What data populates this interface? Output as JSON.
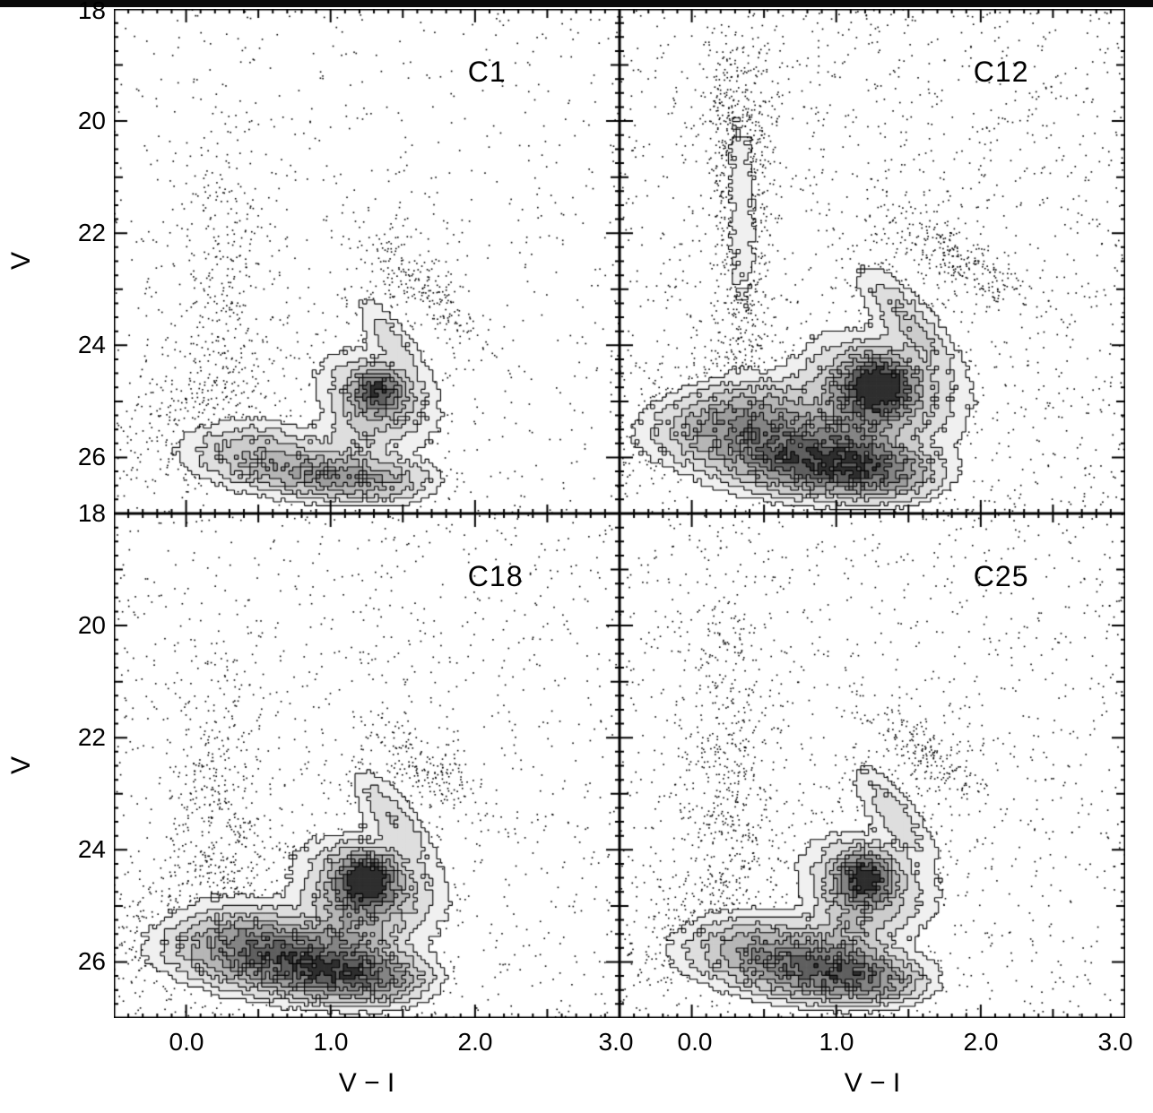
{
  "figure": {
    "xlabel": "V − I",
    "ylabel": "V",
    "xticks": [
      "0.0",
      "1.0",
      "2.0",
      "3.0"
    ],
    "yticks": [
      "18",
      "20",
      "22",
      "24",
      "26"
    ],
    "axis_color": "#000000",
    "dot_color": "#000000",
    "contour_levels": [
      0.07,
      0.15,
      0.27,
      0.42,
      0.6,
      0.8,
      1.05,
      1.35
    ],
    "contour_fills": [
      "#f0f0f0",
      "#dedede",
      "#cccccc",
      "#b6b6b6",
      "#9e9e9e",
      "#848484",
      "#5f5f5f",
      "#2e2e2e"
    ]
  },
  "chart_data": [
    {
      "type": "scatter",
      "panel": "C1",
      "xlabel": "V − I",
      "ylabel": "V",
      "xlim": [
        -0.5,
        3.0
      ],
      "ylim": [
        27.0,
        18.0
      ],
      "xticks": [
        "0.0",
        "1.0",
        "2.0",
        "3.0"
      ],
      "yticks": [
        "18",
        "20",
        "22",
        "24",
        "26"
      ],
      "seed": 11,
      "background_points": 700,
      "components": [
        {
          "name": "red_clump_core",
          "x": 1.33,
          "y": 24.82,
          "sx": 0.1,
          "sy": 0.22,
          "rot": 0,
          "a": 1.15,
          "n": 260
        },
        {
          "name": "red_clump_halo",
          "x": 1.33,
          "y": 24.95,
          "sx": 0.22,
          "sy": 0.5,
          "rot": -12,
          "a": 0.35,
          "n": 160
        },
        {
          "name": "rgb_plume",
          "x": 1.42,
          "y": 23.9,
          "sx": 0.09,
          "sy": 0.5,
          "rot": -14,
          "a": 0.2,
          "n": 160
        },
        {
          "name": "rgb_tip_dots",
          "x": 1.62,
          "y": 22.9,
          "sx": 0.14,
          "sy": 0.6,
          "rot": -18,
          "a": 0.05,
          "n": 230
        },
        {
          "name": "ms_blue",
          "x": 0.45,
          "y": 25.85,
          "sx": 0.27,
          "sy": 0.3,
          "rot": 28,
          "a": 0.32,
          "n": 160
        },
        {
          "name": "ms_mid",
          "x": 0.8,
          "y": 26.25,
          "sx": 0.3,
          "sy": 0.25,
          "rot": 10,
          "a": 0.5,
          "n": 170
        },
        {
          "name": "ms_red",
          "x": 1.15,
          "y": 26.4,
          "sx": 0.24,
          "sy": 0.22,
          "rot": 0,
          "a": 0.42,
          "n": 130
        },
        {
          "name": "ms_red_tail",
          "x": 1.45,
          "y": 26.45,
          "sx": 0.2,
          "sy": 0.24,
          "rot": 0,
          "a": 0.2,
          "n": 110
        },
        {
          "name": "sgb_bridge",
          "x": 1.2,
          "y": 25.6,
          "sx": 0.15,
          "sy": 0.4,
          "rot": 0,
          "a": 0.18,
          "n": 90
        },
        {
          "name": "blue_plume_dots",
          "x": 0.28,
          "y": 22.8,
          "sx": 0.22,
          "sy": 1.7,
          "rot": 0,
          "a": 0.015,
          "n": 320
        },
        {
          "name": "faint_blue_dots",
          "x": 0.05,
          "y": 25.1,
          "sx": 0.25,
          "sy": 0.8,
          "rot": 20,
          "a": 0.02,
          "n": 220
        }
      ]
    },
    {
      "type": "scatter",
      "panel": "C12",
      "xlabel": "V − I",
      "ylabel": "V",
      "xlim": [
        -0.5,
        3.0
      ],
      "ylim": [
        27.0,
        18.0
      ],
      "xticks": [
        "0.0",
        "1.0",
        "2.0",
        "3.0"
      ],
      "yticks": [
        "18",
        "20",
        "22",
        "24",
        "26"
      ],
      "seed": 23,
      "background_points": 1400,
      "components": [
        {
          "name": "red_clump_core",
          "x": 1.3,
          "y": 24.7,
          "sx": 0.13,
          "sy": 0.28,
          "rot": 0,
          "a": 1.55,
          "n": 300
        },
        {
          "name": "red_clump_halo",
          "x": 1.32,
          "y": 24.8,
          "sx": 0.28,
          "sy": 0.55,
          "rot": -14,
          "a": 0.5,
          "n": 180
        },
        {
          "name": "rgb_plume",
          "x": 1.5,
          "y": 23.6,
          "sx": 0.12,
          "sy": 0.6,
          "rot": -16,
          "a": 0.3,
          "n": 240
        },
        {
          "name": "rgb_tip_dots",
          "x": 1.8,
          "y": 22.4,
          "sx": 0.16,
          "sy": 0.55,
          "rot": -26,
          "a": 0.06,
          "n": 280
        },
        {
          "name": "ms_blue",
          "x": 0.35,
          "y": 25.35,
          "sx": 0.3,
          "sy": 0.4,
          "rot": 30,
          "a": 0.75,
          "n": 200
        },
        {
          "name": "ms_mid",
          "x": 0.7,
          "y": 25.95,
          "sx": 0.33,
          "sy": 0.35,
          "rot": 14,
          "a": 0.95,
          "n": 210
        },
        {
          "name": "ms_red",
          "x": 1.05,
          "y": 26.2,
          "sx": 0.3,
          "sy": 0.3,
          "rot": 4,
          "a": 0.8,
          "n": 160
        },
        {
          "name": "ms_red_tail",
          "x": 1.35,
          "y": 26.3,
          "sx": 0.22,
          "sy": 0.28,
          "rot": 0,
          "a": 0.5,
          "n": 120
        },
        {
          "name": "sgb_bridge",
          "x": 1.15,
          "y": 25.3,
          "sx": 0.2,
          "sy": 0.5,
          "rot": 0,
          "a": 0.45,
          "n": 110
        },
        {
          "name": "blue_plume",
          "x": 0.35,
          "y": 22.0,
          "sx": 0.1,
          "sy": 1.5,
          "rot": 0,
          "a": 0.09,
          "n": 520
        },
        {
          "name": "blue_plume_top_dots",
          "x": 0.3,
          "y": 20.1,
          "sx": 0.13,
          "sy": 0.8,
          "rot": 0,
          "a": 0.03,
          "n": 260
        },
        {
          "name": "faint_blue_dots",
          "x": 0.0,
          "y": 24.9,
          "sx": 0.25,
          "sy": 0.9,
          "rot": 20,
          "a": 0.02,
          "n": 240
        }
      ]
    },
    {
      "type": "scatter",
      "panel": "C18",
      "xlabel": "V − I",
      "ylabel": "V",
      "xlim": [
        -0.5,
        3.0
      ],
      "ylim": [
        27.0,
        18.0
      ],
      "xticks": [
        "0.0",
        "1.0",
        "2.0",
        "3.0"
      ],
      "yticks": [
        "18",
        "20",
        "22",
        "24",
        "26"
      ],
      "seed": 37,
      "background_points": 1050,
      "components": [
        {
          "name": "red_clump_core",
          "x": 1.25,
          "y": 24.55,
          "sx": 0.12,
          "sy": 0.28,
          "rot": 0,
          "a": 1.5,
          "n": 300
        },
        {
          "name": "red_clump_halo",
          "x": 1.27,
          "y": 24.7,
          "sx": 0.26,
          "sy": 0.52,
          "rot": -12,
          "a": 0.45,
          "n": 170
        },
        {
          "name": "rgb_plume",
          "x": 1.43,
          "y": 23.45,
          "sx": 0.11,
          "sy": 0.55,
          "rot": -14,
          "a": 0.24,
          "n": 220
        },
        {
          "name": "rgb_tip_dots",
          "x": 1.62,
          "y": 22.5,
          "sx": 0.13,
          "sy": 0.45,
          "rot": -20,
          "a": 0.05,
          "n": 180
        },
        {
          "name": "ms_blue",
          "x": 0.4,
          "y": 25.6,
          "sx": 0.3,
          "sy": 0.35,
          "rot": 30,
          "a": 0.6,
          "n": 180
        },
        {
          "name": "ms_mid",
          "x": 0.75,
          "y": 26.0,
          "sx": 0.35,
          "sy": 0.32,
          "rot": 10,
          "a": 1.0,
          "n": 230
        },
        {
          "name": "ms_red",
          "x": 1.1,
          "y": 26.25,
          "sx": 0.28,
          "sy": 0.28,
          "rot": 0,
          "a": 0.7,
          "n": 150
        },
        {
          "name": "ms_red_tail",
          "x": 1.38,
          "y": 26.35,
          "sx": 0.2,
          "sy": 0.25,
          "rot": 0,
          "a": 0.3,
          "n": 100
        },
        {
          "name": "sgb_bridge",
          "x": 1.15,
          "y": 25.35,
          "sx": 0.18,
          "sy": 0.5,
          "rot": 0,
          "a": 0.35,
          "n": 100
        },
        {
          "name": "blue_plume_dots",
          "x": 0.22,
          "y": 23.3,
          "sx": 0.2,
          "sy": 1.6,
          "rot": 0,
          "a": 0.03,
          "n": 420
        },
        {
          "name": "faint_blue_dots",
          "x": 0.0,
          "y": 25.1,
          "sx": 0.25,
          "sy": 0.85,
          "rot": 20,
          "a": 0.02,
          "n": 240
        }
      ]
    },
    {
      "type": "scatter",
      "panel": "C25",
      "xlabel": "V − I",
      "ylabel": "V",
      "xlim": [
        -0.5,
        3.0
      ],
      "ylim": [
        27.0,
        18.0
      ],
      "xticks": [
        "0.0",
        "1.0",
        "2.0",
        "3.0"
      ],
      "yticks": [
        "18",
        "20",
        "22",
        "24",
        "26"
      ],
      "seed": 51,
      "background_points": 1150,
      "components": [
        {
          "name": "red_clump_core",
          "x": 1.2,
          "y": 24.5,
          "sx": 0.11,
          "sy": 0.26,
          "rot": 0,
          "a": 1.35,
          "n": 280
        },
        {
          "name": "red_clump_halo",
          "x": 1.22,
          "y": 24.62,
          "sx": 0.24,
          "sy": 0.5,
          "rot": -12,
          "a": 0.4,
          "n": 160
        },
        {
          "name": "rgb_plume",
          "x": 1.4,
          "y": 23.35,
          "sx": 0.11,
          "sy": 0.55,
          "rot": -15,
          "a": 0.22,
          "n": 210
        },
        {
          "name": "rgb_tip_dots",
          "x": 1.66,
          "y": 22.4,
          "sx": 0.13,
          "sy": 0.5,
          "rot": -22,
          "a": 0.05,
          "n": 210
        },
        {
          "name": "ms_blue",
          "x": 0.45,
          "y": 25.7,
          "sx": 0.28,
          "sy": 0.32,
          "rot": 28,
          "a": 0.5,
          "n": 160
        },
        {
          "name": "ms_mid",
          "x": 0.8,
          "y": 26.1,
          "sx": 0.32,
          "sy": 0.3,
          "rot": 10,
          "a": 0.85,
          "n": 210
        },
        {
          "name": "ms_red",
          "x": 1.1,
          "y": 26.3,
          "sx": 0.26,
          "sy": 0.26,
          "rot": 0,
          "a": 0.6,
          "n": 140
        },
        {
          "name": "ms_red_tail",
          "x": 1.35,
          "y": 26.4,
          "sx": 0.18,
          "sy": 0.22,
          "rot": 0,
          "a": 0.25,
          "n": 90
        },
        {
          "name": "sgb_bridge",
          "x": 1.1,
          "y": 25.4,
          "sx": 0.16,
          "sy": 0.45,
          "rot": 0,
          "a": 0.3,
          "n": 90
        },
        {
          "name": "blue_plume_dots",
          "x": 0.25,
          "y": 22.4,
          "sx": 0.18,
          "sy": 1.7,
          "rot": 0,
          "a": 0.03,
          "n": 470
        },
        {
          "name": "faint_blue_dots",
          "x": 0.05,
          "y": 25.2,
          "sx": 0.25,
          "sy": 0.85,
          "rot": 20,
          "a": 0.02,
          "n": 240
        }
      ]
    }
  ]
}
